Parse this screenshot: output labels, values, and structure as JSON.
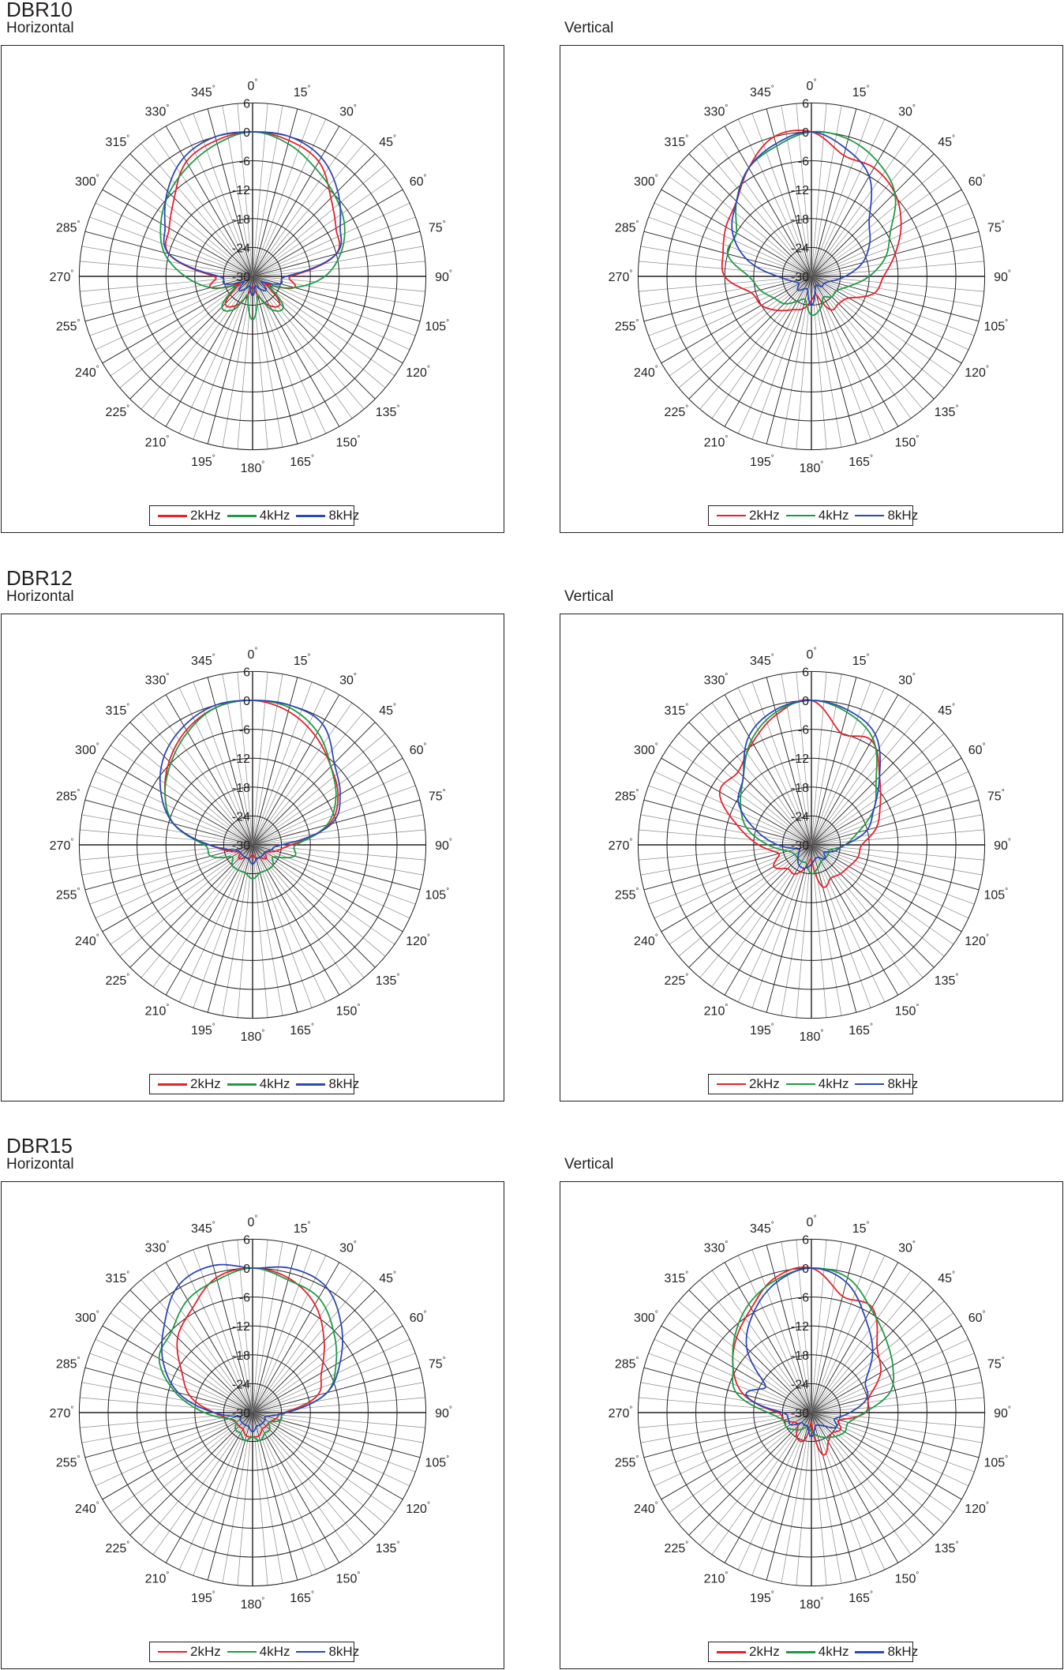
{
  "chart_data": [
    {
      "type": "polar",
      "model": "DBR10",
      "plane": "Horizontal",
      "rlim": [
        -30,
        6
      ],
      "r_ticks": [
        6,
        0,
        -6,
        -12,
        -18,
        -24,
        -30
      ],
      "r_tick_labels": [
        "6",
        "0",
        "-6",
        "-12",
        "-18",
        "-24",
        "-30"
      ],
      "angle_step": 15,
      "angle_ticks": [
        0,
        15,
        30,
        45,
        60,
        75,
        90,
        105,
        120,
        135,
        150,
        165,
        180,
        195,
        210,
        225,
        240,
        255,
        270,
        285,
        300,
        315,
        330,
        345
      ],
      "angle_unit": "°",
      "series": [
        {
          "name": "2kHz",
          "color": "#e8202a",
          "values": [
            0,
            -0.8,
            -2.5,
            -7,
            -10,
            -12,
            -22,
            -21,
            -27,
            -22,
            -23,
            -26,
            -28,
            -26,
            -23,
            -22,
            -27,
            -21,
            -22,
            -12,
            -10,
            -7,
            -2.5,
            -0.8
          ]
        },
        {
          "name": "4kHz",
          "color": "#1e9a46",
          "values": [
            0,
            -1.5,
            -4,
            -6,
            -8,
            -11,
            -15,
            -21,
            -26,
            -21,
            -22,
            -26,
            -21,
            -26,
            -22,
            -21,
            -26,
            -21,
            -16,
            -11,
            -8,
            -5.5,
            -3.5,
            -1.5
          ]
        },
        {
          "name": "8kHz",
          "color": "#2c48b4",
          "values": [
            0,
            0,
            -1.5,
            -5,
            -9,
            -12,
            -23,
            -24,
            -28,
            -26,
            -27,
            -28,
            -26,
            -28,
            -27,
            -26,
            -28,
            -24,
            -23,
            -12,
            -9,
            -5,
            -1.5,
            0
          ]
        }
      ]
    },
    {
      "type": "polar",
      "model": "DBR10",
      "plane": "Vertical",
      "rlim": [
        -30,
        6
      ],
      "r_ticks": [
        6,
        0,
        -6,
        -12,
        -18,
        -24,
        -30
      ],
      "r_tick_labels": [
        "6",
        "0",
        "-6",
        "-12",
        "-18",
        "-24",
        "-30"
      ],
      "angle_step": 15,
      "angle_ticks": [
        0,
        15,
        30,
        45,
        60,
        75,
        90,
        105,
        120,
        135,
        150,
        165,
        180,
        195,
        210,
        225,
        240,
        255,
        270,
        285,
        300,
        315,
        330,
        345
      ],
      "angle_unit": "°",
      "series": [
        {
          "name": "2kHz",
          "color": "#e8202a",
          "values": [
            0,
            -4,
            -4,
            -5.5,
            -8.5,
            -12,
            -15,
            -16.5,
            -21,
            -22,
            -22,
            -26,
            -25,
            -23,
            -22,
            -20,
            -18,
            -17,
            -12,
            -11,
            -9.5,
            -8,
            -4,
            0
          ]
        },
        {
          "name": "4kHz",
          "color": "#1e9a46",
          "values": [
            0,
            -0.5,
            -2.5,
            -5.5,
            -11,
            -14,
            -18,
            -22,
            -24,
            -24,
            -25,
            -23,
            -22,
            -25,
            -24,
            -22,
            -21,
            -19,
            -17,
            -12,
            -12,
            -8,
            -4,
            -2
          ]
        },
        {
          "name": "8kHz",
          "color": "#2c48b4",
          "values": [
            0,
            -2.5,
            -6,
            -13,
            -16,
            -19,
            -23,
            -26,
            -27,
            -27,
            -28,
            -27,
            -24,
            -27,
            -27,
            -26,
            -27,
            -26,
            -23,
            -16,
            -11,
            -8,
            -4,
            -1.5
          ]
        }
      ]
    },
    {
      "type": "polar",
      "model": "DBR12",
      "plane": "Horizontal",
      "rlim": [
        -30,
        6
      ],
      "r_ticks": [
        6,
        0,
        -6,
        -12,
        -18,
        -24,
        -30
      ],
      "r_tick_labels": [
        "6",
        "0",
        "-6",
        "-12",
        "-18",
        "-24",
        "-30"
      ],
      "angle_step": 15,
      "angle_ticks": [
        0,
        15,
        30,
        45,
        60,
        75,
        90,
        105,
        120,
        135,
        150,
        165,
        180,
        195,
        210,
        225,
        240,
        255,
        270,
        285,
        300,
        315,
        330,
        345
      ],
      "angle_unit": "°",
      "series": [
        {
          "name": "2kHz",
          "color": "#e8202a",
          "values": [
            0,
            -1.3,
            -3.9,
            -7,
            -9.5,
            -13.5,
            -22,
            -25,
            -27,
            -26,
            -27,
            -27,
            -28,
            -27,
            -27,
            -26,
            -27,
            -25,
            -21,
            -13,
            -9,
            -5.5,
            -2.5,
            -0.5
          ]
        },
        {
          "name": "4kHz",
          "color": "#1e9a46",
          "values": [
            0,
            -0.5,
            -3,
            -7,
            -10,
            -14,
            -21,
            -21,
            -25,
            -24,
            -24,
            -24,
            -23,
            -24,
            -24,
            -24,
            -25,
            -21,
            -20,
            -13,
            -9,
            -6,
            -3,
            -0.5
          ]
        },
        {
          "name": "8kHz",
          "color": "#2c48b4",
          "values": [
            0,
            0,
            -1,
            -6,
            -9,
            -13,
            -24,
            -26,
            -27,
            -27,
            -27,
            -27,
            -26,
            -27,
            -27,
            -27,
            -27,
            -26,
            -21,
            -13,
            -8,
            -4,
            -1.5,
            0
          ]
        }
      ]
    },
    {
      "type": "polar",
      "model": "DBR12",
      "plane": "Vertical",
      "rlim": [
        -30,
        6
      ],
      "r_ticks": [
        6,
        0,
        -6,
        -12,
        -18,
        -24,
        -30
      ],
      "r_tick_labels": [
        "6",
        "0",
        "-6",
        "-12",
        "-18",
        "-24",
        "-30"
      ],
      "angle_step": 15,
      "angle_ticks": [
        0,
        15,
        30,
        45,
        60,
        75,
        90,
        105,
        120,
        135,
        150,
        165,
        180,
        195,
        210,
        225,
        240,
        255,
        270,
        285,
        300,
        315,
        330,
        345
      ],
      "angle_unit": "°",
      "series": [
        {
          "name": "2kHz",
          "color": "#e8202a",
          "values": [
            0,
            -6,
            -5,
            -10,
            -13.5,
            -16,
            -19.5,
            -20,
            -21,
            -21.5,
            -22,
            -21,
            -27,
            -25,
            -23,
            -23,
            -21,
            -23,
            -19,
            -14,
            -8,
            -8.5,
            -5.5,
            -2
          ]
        },
        {
          "name": "4kHz",
          "color": "#1e9a46",
          "values": [
            0,
            -1.5,
            -4.5,
            -11,
            -15,
            -20,
            -23,
            -26,
            -26,
            -26,
            -26,
            -25,
            -24,
            -26,
            -26,
            -26,
            -26,
            -25,
            -21,
            -16,
            -13,
            -10,
            -5,
            -1.5
          ]
        },
        {
          "name": "8kHz",
          "color": "#2c48b4",
          "values": [
            0,
            -1,
            -3.5,
            -10,
            -15,
            -18,
            -23,
            -25,
            -27,
            -26,
            -27,
            -27,
            -26,
            -25,
            -25,
            -26,
            -27,
            -27,
            -23,
            -18,
            -12.5,
            -10,
            -4,
            -1
          ]
        }
      ]
    },
    {
      "type": "polar",
      "model": "DBR15",
      "plane": "Horizontal",
      "rlim": [
        -30,
        6
      ],
      "r_ticks": [
        6,
        0,
        -6,
        -12,
        -18,
        -24,
        -30
      ],
      "r_tick_labels": [
        "6",
        "0",
        "-6",
        "-12",
        "-18",
        "-24",
        "-30"
      ],
      "angle_step": 15,
      "angle_ticks": [
        0,
        15,
        30,
        45,
        60,
        75,
        90,
        105,
        120,
        135,
        150,
        165,
        180,
        195,
        210,
        225,
        240,
        255,
        270,
        285,
        300,
        315,
        330,
        345
      ],
      "angle_unit": "°",
      "series": [
        {
          "name": "2kHz",
          "color": "#e8202a",
          "values": [
            0,
            -1.1,
            -4.1,
            -9,
            -13.5,
            -16,
            -23.5,
            -25,
            -26,
            -26,
            -26,
            -25,
            -25,
            -25,
            -26,
            -26,
            -26,
            -25,
            -22,
            -16.5,
            -13,
            -8,
            -5,
            -1
          ]
        },
        {
          "name": "4kHz",
          "color": "#1e9a46",
          "values": [
            0,
            -1.5,
            -2.5,
            -6.2,
            -10,
            -14,
            -23,
            -24,
            -26,
            -25,
            -25,
            -24,
            -25,
            -24,
            -25,
            -25,
            -26,
            -25,
            -20,
            -13.3,
            -7.6,
            -6.2,
            -3,
            -1.5
          ]
        },
        {
          "name": "8kHz",
          "color": "#2c48b4",
          "values": [
            0,
            1,
            0.3,
            -4,
            -9,
            -14,
            -23,
            -27,
            -27,
            -27,
            -27,
            -27,
            -26,
            -27,
            -27,
            -27,
            -27,
            -27,
            -22,
            -14,
            -8.5,
            -4.1,
            0.6,
            1.6
          ]
        }
      ]
    },
    {
      "type": "polar",
      "model": "DBR15",
      "plane": "Vertical",
      "rlim": [
        -30,
        6
      ],
      "r_ticks": [
        6,
        0,
        -6,
        -12,
        -18,
        -24,
        -30
      ],
      "r_tick_labels": [
        "6",
        "0",
        "-6",
        "-12",
        "-18",
        "-24",
        "-30"
      ],
      "angle_step": 15,
      "angle_ticks": [
        0,
        15,
        30,
        45,
        60,
        75,
        90,
        105,
        120,
        135,
        150,
        165,
        180,
        195,
        210,
        225,
        240,
        255,
        270,
        285,
        300,
        315,
        330,
        345
      ],
      "angle_unit": "°",
      "series": [
        {
          "name": "2kHz",
          "color": "#e8202a",
          "values": [
            0,
            -5,
            -4.8,
            -10.7,
            -13.4,
            -17.6,
            -18.8,
            -24,
            -23,
            -24,
            -23,
            -21,
            -28,
            -24,
            -24,
            -26,
            -26,
            -24,
            -23,
            -15.4,
            -11.2,
            -8,
            -5,
            -1
          ]
        },
        {
          "name": "4kHz",
          "color": "#1e9a46",
          "values": [
            0,
            -1,
            -5.2,
            -8.2,
            -10.5,
            -13,
            -19,
            -22,
            -22,
            -23,
            -24,
            -25,
            -26,
            -27,
            -26,
            -25,
            -24,
            -24,
            -21,
            -13.8,
            -11.2,
            -7.5,
            -4,
            -1.5
          ]
        },
        {
          "name": "8kHz",
          "color": "#2c48b4",
          "values": [
            0,
            -2,
            -7.5,
            -12,
            -17,
            -18,
            -22,
            -25,
            -24,
            -26,
            -27,
            -27,
            -25,
            -27,
            -27,
            -27,
            -25,
            -25,
            -24,
            -16,
            -19,
            -11,
            -6,
            -2
          ]
        }
      ]
    }
  ]
}
